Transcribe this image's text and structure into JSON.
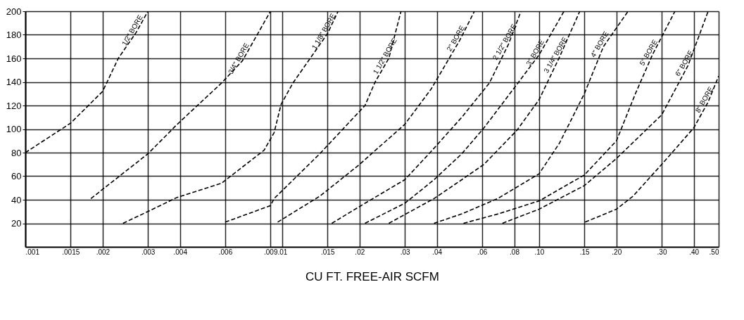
{
  "chart_data": {
    "type": "line",
    "xlabel": "CU FT. FREE-AIR SCFM",
    "xlim": [
      0.001,
      0.5
    ],
    "ylim": [
      0,
      200
    ],
    "xticks": [
      {
        "value": 0.001,
        "label": ".001"
      },
      {
        "value": 0.0015,
        "label": ".0015"
      },
      {
        "value": 0.002,
        "label": ".002"
      },
      {
        "value": 0.003,
        "label": ".003"
      },
      {
        "value": 0.004,
        "label": ".004"
      },
      {
        "value": 0.006,
        "label": ".006"
      },
      {
        "value": 0.009,
        "label": ".009"
      },
      {
        "value": 0.01,
        "label": ".01"
      },
      {
        "value": 0.015,
        "label": ".015"
      },
      {
        "value": 0.02,
        "label": ".02"
      },
      {
        "value": 0.03,
        "label": ".03"
      },
      {
        "value": 0.04,
        "label": ".04"
      },
      {
        "value": 0.06,
        "label": ".06"
      },
      {
        "value": 0.08,
        "label": ".08"
      },
      {
        "value": 0.1,
        "label": ".10"
      },
      {
        "value": 0.15,
        "label": ".15"
      },
      {
        "value": 0.2,
        "label": ".20"
      },
      {
        "value": 0.3,
        "label": ".30"
      },
      {
        "value": 0.4,
        "label": ".40"
      },
      {
        "value": 0.5,
        "label": ".50"
      }
    ],
    "yticks": [
      20,
      40,
      60,
      80,
      100,
      120,
      140,
      160,
      180,
      200
    ],
    "grid": true,
    "line_style": "dashed",
    "log": "x",
    "series": [
      {
        "name": "1/2\" BORE",
        "color": "#000000",
        "x": [
          0.001,
          0.0015,
          0.002,
          0.0023,
          0.0027,
          0.003
        ],
        "values": [
          80,
          105,
          132,
          160,
          182,
          200
        ]
      },
      {
        "name": "3/4\" BORE",
        "color": "#000000",
        "x": [
          0.0018,
          0.003,
          0.0039,
          0.0058,
          0.007,
          0.009
        ],
        "values": [
          41,
          79,
          104,
          139,
          158,
          200
        ]
      },
      {
        "name": "1 1/8\" BORE",
        "color": "#000000",
        "x": [
          0.0024,
          0.003,
          0.0039,
          0.0058,
          0.0085,
          0.0093,
          0.0099,
          0.011,
          0.015,
          0.0165
        ],
        "values": [
          20,
          30,
          42,
          54,
          82,
          97,
          121,
          139,
          181,
          200
        ]
      },
      {
        "name": "1 1/2\" BORE",
        "color": "#000000",
        "x": [
          0.006,
          0.009,
          0.0093,
          0.014,
          0.021,
          0.023,
          0.026,
          0.029
        ],
        "values": [
          21,
          35,
          41,
          79,
          120,
          140,
          160,
          200
        ]
      },
      {
        "name": "2\" BORE",
        "color": "#000000",
        "x": [
          0.0096,
          0.014,
          0.02,
          0.03,
          0.038,
          0.049,
          0.056
        ],
        "values": [
          21,
          43,
          70,
          104,
          134,
          175,
          200
        ]
      },
      {
        "name": "2 1/2\" BORE",
        "color": "#000000",
        "x": [
          0.0156,
          0.021,
          0.03,
          0.038,
          0.05,
          0.064,
          0.076,
          0.085
        ],
        "values": [
          20,
          37,
          57,
          81,
          110,
          139,
          172,
          200
        ]
      },
      {
        "name": "3\" BORE",
        "color": "#000000",
        "x": [
          0.021,
          0.03,
          0.039,
          0.05,
          0.061,
          0.082,
          0.1,
          0.125
        ],
        "values": [
          20,
          37,
          57,
          79,
          101,
          138,
          163,
          200
        ]
      },
      {
        "name": "3 1/4\" BORE",
        "color": "#000000",
        "x": [
          0.026,
          0.039,
          0.05,
          0.061,
          0.082,
          0.1,
          0.12,
          0.144
        ],
        "values": [
          20,
          41,
          57,
          70,
          99,
          125,
          161,
          200
        ]
      },
      {
        "name": "4\" BORE",
        "color": "#000000",
        "x": [
          0.039,
          0.05,
          0.069,
          0.1,
          0.12,
          0.15,
          0.178,
          0.222
        ],
        "values": [
          20,
          28,
          41,
          62,
          88,
          130,
          170,
          200
        ]
      },
      {
        "name": "5\" BORE",
        "color": "#000000",
        "x": [
          0.0508,
          0.0693,
          0.1,
          0.15,
          0.2,
          0.237,
          0.276,
          0.338
        ],
        "values": [
          20,
          28,
          39,
          61,
          90,
          130,
          163,
          200
        ]
      },
      {
        "name": "6\" BORE",
        "color": "#000000",
        "x": [
          0.072,
          0.1,
          0.15,
          0.2,
          0.3,
          0.38,
          0.455
        ],
        "values": [
          20,
          32,
          52,
          75,
          112,
          154,
          200
        ]
      },
      {
        "name": "8\" BORE",
        "color": "#000000",
        "x": [
          0.151,
          0.2,
          0.232,
          0.3,
          0.4,
          0.455,
          0.5
        ],
        "values": [
          21,
          32,
          43,
          70,
          101,
          123,
          145
        ]
      }
    ]
  }
}
